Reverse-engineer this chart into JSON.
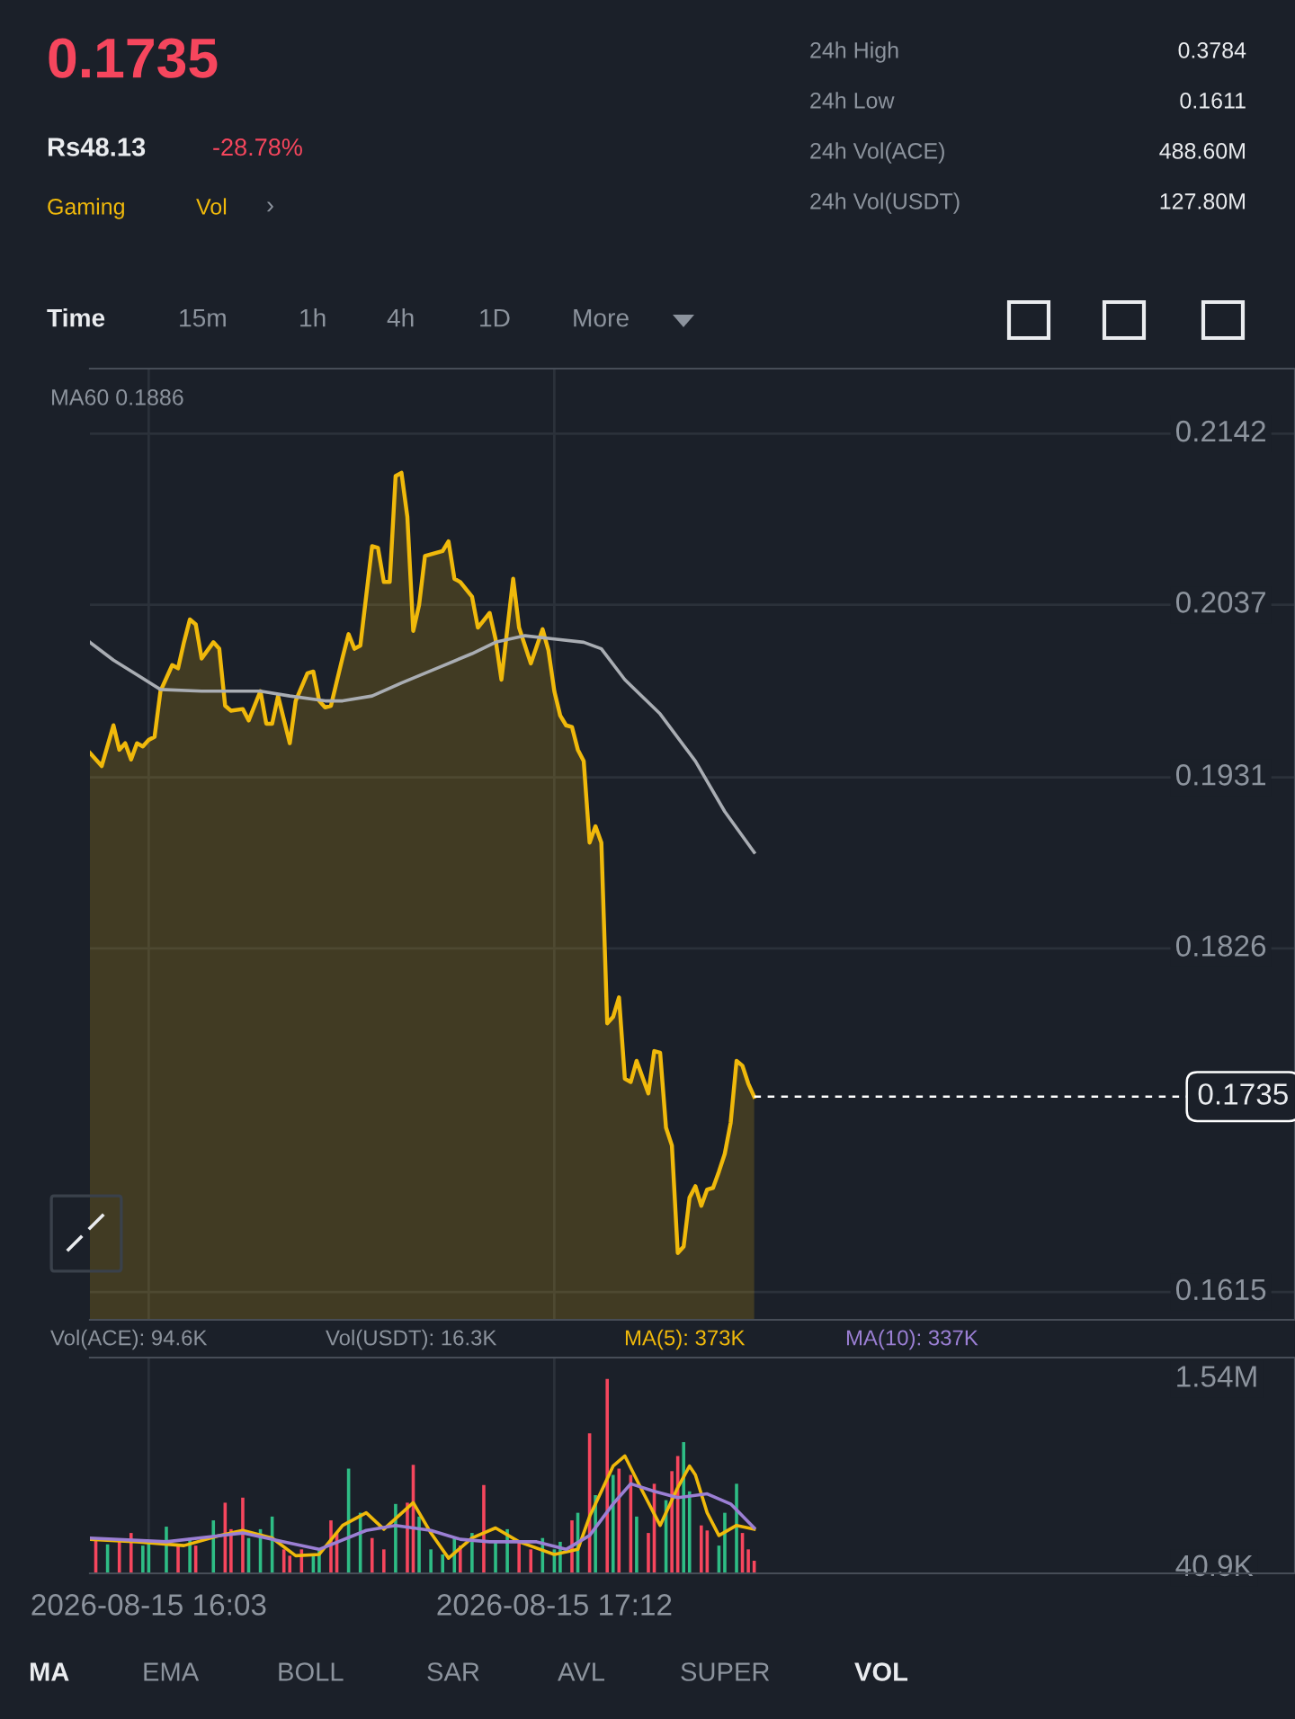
{
  "chart_data": [
    {
      "type": "area",
      "xlim": [
        "2026-08-15T15:53",
        "2026-08-15T19:18"
      ],
      "ylim": [
        0.1598,
        0.2182
      ],
      "xticks": [
        "2026-08-15T16:03",
        "2026-08-15T17:12"
      ],
      "yticks": [
        0.1615,
        0.1826,
        0.1931,
        0.2037,
        0.2142
      ],
      "tick_labels": "y",
      "grid": true,
      "line_style": "solid",
      "ref_lines": [
        {
          "axis": "y",
          "value": 0.1735,
          "label": "0.1735",
          "color": "#ffffff",
          "line_style": "dashed"
        }
      ],
      "annotations": [
        "0.1735",
        "Rs48.13",
        "-28.78%",
        "Gaming",
        "Vol",
        "›",
        "24h High",
        "0.3784",
        "24h Low",
        "0.1611",
        "24h Vol(ACE)",
        "488.60M",
        "24h Vol(USDT)",
        "127.80M",
        "Time",
        "15m",
        "1h",
        "4h",
        "1D",
        "More",
        "MA60 0.1886"
      ],
      "series": [
        {
          "color": "#f0b90b",
          "x": [
            "2026-08-15T15:53",
            "2026-08-15T15:55",
            "2026-08-15T15:57",
            "2026-08-15T15:58",
            "2026-08-15T15:59",
            "2026-08-15T16:00",
            "2026-08-15T16:01",
            "2026-08-15T16:02",
            "2026-08-15T16:03",
            "2026-08-15T16:04",
            "2026-08-15T16:05",
            "2026-08-15T16:07",
            "2026-08-15T16:08",
            "2026-08-15T16:09",
            "2026-08-15T16:10",
            "2026-08-15T16:11",
            "2026-08-15T16:12",
            "2026-08-15T16:14",
            "2026-08-15T16:15",
            "2026-08-15T16:16",
            "2026-08-15T16:17",
            "2026-08-15T16:19",
            "2026-08-15T16:20",
            "2026-08-15T16:22",
            "2026-08-15T16:23",
            "2026-08-15T16:24",
            "2026-08-15T16:25",
            "2026-08-15T16:27",
            "2026-08-15T16:28",
            "2026-08-15T16:30",
            "2026-08-15T16:31",
            "2026-08-15T16:32",
            "2026-08-15T16:33",
            "2026-08-15T16:34",
            "2026-08-15T16:36",
            "2026-08-15T16:37",
            "2026-08-15T16:38",
            "2026-08-15T16:39",
            "2026-08-15T16:41",
            "2026-08-15T16:42",
            "2026-08-15T16:43",
            "2026-08-15T16:44",
            "2026-08-15T16:45",
            "2026-08-15T16:46",
            "2026-08-15T16:47",
            "2026-08-15T16:48",
            "2026-08-15T16:49",
            "2026-08-15T16:50",
            "2026-08-15T16:53",
            "2026-08-15T16:54",
            "2026-08-15T16:55",
            "2026-08-15T16:56",
            "2026-08-15T16:58",
            "2026-08-15T16:59",
            "2026-08-15T17:01",
            "2026-08-15T17:02",
            "2026-08-15T17:03",
            "2026-08-15T17:05",
            "2026-08-15T17:06",
            "2026-08-15T17:08",
            "2026-08-15T17:10",
            "2026-08-15T17:11",
            "2026-08-15T17:12",
            "2026-08-15T17:13",
            "2026-08-15T17:14",
            "2026-08-15T17:15",
            "2026-08-15T17:16",
            "2026-08-15T17:17",
            "2026-08-15T17:18",
            "2026-08-15T17:19",
            "2026-08-15T17:20",
            "2026-08-15T17:21",
            "2026-08-15T17:22",
            "2026-08-15T17:23",
            "2026-08-15T17:24",
            "2026-08-15T17:25",
            "2026-08-15T17:26",
            "2026-08-15T17:28",
            "2026-08-15T17:29",
            "2026-08-15T17:30",
            "2026-08-15T17:31",
            "2026-08-15T17:32",
            "2026-08-15T17:33",
            "2026-08-15T17:34",
            "2026-08-15T17:35",
            "2026-08-15T17:36",
            "2026-08-15T17:37",
            "2026-08-15T17:38",
            "2026-08-15T17:39",
            "2026-08-15T17:40",
            "2026-08-15T17:41",
            "2026-08-15T17:42",
            "2026-08-15T17:43",
            "2026-08-15T17:44",
            "2026-08-15T17:45",
            "2026-08-15T17:46"
          ],
          "values": [
            0.1946,
            0.1938,
            0.1963,
            0.1948,
            0.1952,
            0.1942,
            0.1952,
            0.195,
            0.1954,
            0.1956,
            0.1984,
            0.2,
            0.1998,
            0.2014,
            0.2028,
            0.2025,
            0.2004,
            0.2014,
            0.201,
            0.1975,
            0.1972,
            0.1973,
            0.1966,
            0.1984,
            0.1964,
            0.1964,
            0.1981,
            0.1952,
            0.1978,
            0.1995,
            0.1996,
            0.1978,
            0.1974,
            0.1975,
            0.2005,
            0.2019,
            0.201,
            0.2012,
            0.2073,
            0.2072,
            0.2051,
            0.2051,
            0.2116,
            0.2118,
            0.2091,
            0.2021,
            0.2037,
            0.2067,
            0.207,
            0.2076,
            0.2053,
            0.2051,
            0.2042,
            0.2023,
            0.2032,
            0.2016,
            0.1991,
            0.2053,
            0.2023,
            0.2001,
            0.2022,
            0.2009,
            0.1984,
            0.1969,
            0.1963,
            0.1962,
            0.1948,
            0.1941,
            0.1891,
            0.1901,
            0.1891,
            0.178,
            0.1784,
            0.1796,
            0.1746,
            0.1744,
            0.1757,
            0.1737,
            0.1763,
            0.1762,
            0.1716,
            0.1705,
            0.1639,
            0.1643,
            0.1673,
            0.168,
            0.1668,
            0.1678,
            0.1679,
            0.1689,
            0.17,
            0.1719,
            0.1757,
            0.1754,
            0.1743,
            0.1735
          ]
        },
        {
          "type": "line",
          "color": "#a9adb3",
          "x": [
            "2026-08-15T15:53",
            "2026-08-15T15:57",
            "2026-08-15T16:01",
            "2026-08-15T16:05",
            "2026-08-15T16:12",
            "2026-08-15T16:22",
            "2026-08-15T16:27",
            "2026-08-15T16:33",
            "2026-08-15T16:36",
            "2026-08-15T16:41",
            "2026-08-15T16:46",
            "2026-08-15T16:52",
            "2026-08-15T16:58",
            "2026-08-15T17:02",
            "2026-08-15T17:07",
            "2026-08-15T17:12",
            "2026-08-15T17:17",
            "2026-08-15T17:20",
            "2026-08-15T17:24",
            "2026-08-15T17:30",
            "2026-08-15T17:36",
            "2026-08-15T17:41",
            "2026-08-15T17:46"
          ],
          "values": [
            0.2014,
            0.2003,
            0.1994,
            0.1985,
            0.1984,
            0.1984,
            0.1981,
            0.1978,
            0.1978,
            0.1981,
            0.1989,
            0.1998,
            0.2007,
            0.2014,
            0.2018,
            0.2016,
            0.2014,
            0.201,
            0.1991,
            0.197,
            0.1941,
            0.191,
            0.1885
          ]
        }
      ]
    },
    {
      "type": "bar",
      "xlim": [
        "2026-08-15T15:53",
        "2026-08-15T19:18"
      ],
      "ylim": [
        0,
        1710000
      ],
      "xticks": [
        {
          "value": "2026-08-15T16:03",
          "label": "2026-08-15 16:03"
        },
        {
          "value": "2026-08-15T17:12",
          "label": "2026-08-15 17:12"
        }
      ],
      "yticks": [
        {
          "value": 40900,
          "label": "40.9K"
        },
        {
          "value": 1540000,
          "label": "1.54M"
        }
      ],
      "grid": "x",
      "annotations": [
        "Vol(ACE): 94.6K",
        "Vol(USDT): 16.3K",
        "MA(5): 373K",
        "MA(10): 337K",
        "MA",
        "EMA",
        "BOLL",
        "SAR",
        "AVL",
        "SUPER",
        "VOL"
      ],
      "series": [
        {
          "x": [
            "2026-08-15T15:54",
            "2026-08-15T15:56",
            "2026-08-15T15:58",
            "2026-08-15T16:00",
            "2026-08-15T16:02",
            "2026-08-15T16:03",
            "2026-08-15T16:06",
            "2026-08-15T16:08",
            "2026-08-15T16:10",
            "2026-08-15T16:11",
            "2026-08-15T16:14",
            "2026-08-15T16:16",
            "2026-08-15T16:17",
            "2026-08-15T16:19",
            "2026-08-15T16:20",
            "2026-08-15T16:22",
            "2026-08-15T16:24",
            "2026-08-15T16:26",
            "2026-08-15T16:27",
            "2026-08-15T16:29",
            "2026-08-15T16:31",
            "2026-08-15T16:32",
            "2026-08-15T16:34",
            "2026-08-15T16:35",
            "2026-08-15T16:37",
            "2026-08-15T16:39",
            "2026-08-15T16:41",
            "2026-08-15T16:43",
            "2026-08-15T16:45",
            "2026-08-15T16:47",
            "2026-08-15T16:48",
            "2026-08-15T16:49",
            "2026-08-15T16:51",
            "2026-08-15T16:53",
            "2026-08-15T16:55",
            "2026-08-15T16:56",
            "2026-08-15T16:58",
            "2026-08-15T17:00",
            "2026-08-15T17:02",
            "2026-08-15T17:04",
            "2026-08-15T17:06",
            "2026-08-15T17:08",
            "2026-08-15T17:10",
            "2026-08-15T17:12",
            "2026-08-15T17:13",
            "2026-08-15T17:15",
            "2026-08-15T17:16",
            "2026-08-15T17:18",
            "2026-08-15T17:19",
            "2026-08-15T17:21",
            "2026-08-15T17:22",
            "2026-08-15T17:23",
            "2026-08-15T17:25",
            "2026-08-15T17:26",
            "2026-08-15T17:28",
            "2026-08-15T17:29",
            "2026-08-15T17:31",
            "2026-08-15T17:32",
            "2026-08-15T17:33",
            "2026-08-15T17:34",
            "2026-08-15T17:35",
            "2026-08-15T17:37",
            "2026-08-15T17:38",
            "2026-08-15T17:40",
            "2026-08-15T17:41",
            "2026-08-15T17:43",
            "2026-08-15T17:44",
            "2026-08-15T17:45",
            "2026-08-15T17:46"
          ],
          "values": [
            280000,
            230000,
            250000,
            320000,
            220000,
            250000,
            370000,
            220000,
            280000,
            220000,
            420000,
            560000,
            350000,
            600000,
            280000,
            350000,
            450000,
            190000,
            140000,
            190000,
            150000,
            190000,
            420000,
            320000,
            830000,
            480000,
            280000,
            190000,
            550000,
            560000,
            860000,
            450000,
            190000,
            150000,
            280000,
            220000,
            320000,
            700000,
            250000,
            350000,
            250000,
            190000,
            280000,
            190000,
            250000,
            420000,
            480000,
            1110000,
            620000,
            1540000,
            780000,
            830000,
            780000,
            450000,
            320000,
            710000,
            580000,
            810000,
            930000,
            1040000,
            650000,
            380000,
            340000,
            220000,
            480000,
            710000,
            320000,
            190000,
            100000
          ],
          "colors": [
            "#f6465d",
            "#2ebd85",
            "#f6465d",
            "#f6465d",
            "#2ebd85",
            "#2ebd85",
            "#2ebd85",
            "#f6465d",
            "#2ebd85",
            "#f6465d",
            "#2ebd85",
            "#f6465d",
            "#f6465d",
            "#f6465d",
            "#2ebd85",
            "#2ebd85",
            "#2ebd85",
            "#f6465d",
            "#f6465d",
            "#f6465d",
            "#2ebd85",
            "#2ebd85",
            "#f6465d",
            "#f6465d",
            "#2ebd85",
            "#2ebd85",
            "#f6465d",
            "#f6465d",
            "#2ebd85",
            "#f6465d",
            "#f6465d",
            "#2ebd85",
            "#2ebd85",
            "#2ebd85",
            "#2ebd85",
            "#f6465d",
            "#2ebd85",
            "#f6465d",
            "#2ebd85",
            "#2ebd85",
            "#f6465d",
            "#f6465d",
            "#2ebd85",
            "#2ebd85",
            "#2ebd85",
            "#f6465d",
            "#2ebd85",
            "#f6465d",
            "#2ebd85",
            "#f6465d",
            "#2ebd85",
            "#f6465d",
            "#f6465d",
            "#2ebd85",
            "#f6465d",
            "#f6465d",
            "#2ebd85",
            "#f6465d",
            "#f6465d",
            "#2ebd85",
            "#2ebd85",
            "#f6465d",
            "#f6465d",
            "#2ebd85",
            "#2ebd85",
            "#2ebd85",
            "#f6465d",
            "#f6465d",
            "#f6465d"
          ]
        },
        {
          "type": "line",
          "color": "#f0b90b",
          "x": [
            "2026-08-15T15:53",
            "2026-08-15T16:01",
            "2026-08-15T16:09",
            "2026-08-15T16:15",
            "2026-08-15T16:19",
            "2026-08-15T16:24",
            "2026-08-15T16:28",
            "2026-08-15T16:32",
            "2026-08-15T16:36",
            "2026-08-15T16:40",
            "2026-08-15T16:43",
            "2026-08-15T16:48",
            "2026-08-15T16:51",
            "2026-08-15T16:54",
            "2026-08-15T16:58",
            "2026-08-15T17:02",
            "2026-08-15T17:06",
            "2026-08-15T17:12",
            "2026-08-15T17:16",
            "2026-08-15T17:18",
            "2026-08-15T17:20",
            "2026-08-15T17:22",
            "2026-08-15T17:24",
            "2026-08-15T17:27",
            "2026-08-15T17:30",
            "2026-08-15T17:33",
            "2026-08-15T17:35",
            "2026-08-15T17:36",
            "2026-08-15T17:38",
            "2026-08-15T17:40",
            "2026-08-15T17:43",
            "2026-08-15T17:46"
          ],
          "values": [
            270000,
            250000,
            220000,
            300000,
            340000,
            280000,
            140000,
            150000,
            380000,
            480000,
            350000,
            560000,
            320000,
            120000,
            280000,
            360000,
            250000,
            150000,
            190000,
            450000,
            650000,
            850000,
            930000,
            650000,
            380000,
            680000,
            850000,
            780000,
            480000,
            300000,
            380000,
            350000
          ]
        },
        {
          "type": "line",
          "color": "#9b7fd4",
          "x": [
            "2026-08-15T15:53",
            "2026-08-15T16:06",
            "2026-08-15T16:19",
            "2026-08-15T16:26",
            "2026-08-15T16:32",
            "2026-08-15T16:40",
            "2026-08-15T16:45",
            "2026-08-15T16:51",
            "2026-08-15T16:56",
            "2026-08-15T17:01",
            "2026-08-15T17:09",
            "2026-08-15T17:14",
            "2026-08-15T17:18",
            "2026-08-15T17:22",
            "2026-08-15T17:25",
            "2026-08-15T17:29",
            "2026-08-15T17:33",
            "2026-08-15T17:38",
            "2026-08-15T17:42",
            "2026-08-15T17:46"
          ],
          "values": [
            280000,
            250000,
            320000,
            250000,
            190000,
            340000,
            380000,
            340000,
            270000,
            250000,
            250000,
            190000,
            300000,
            550000,
            710000,
            650000,
            600000,
            630000,
            550000,
            360000
          ]
        }
      ]
    }
  ]
}
